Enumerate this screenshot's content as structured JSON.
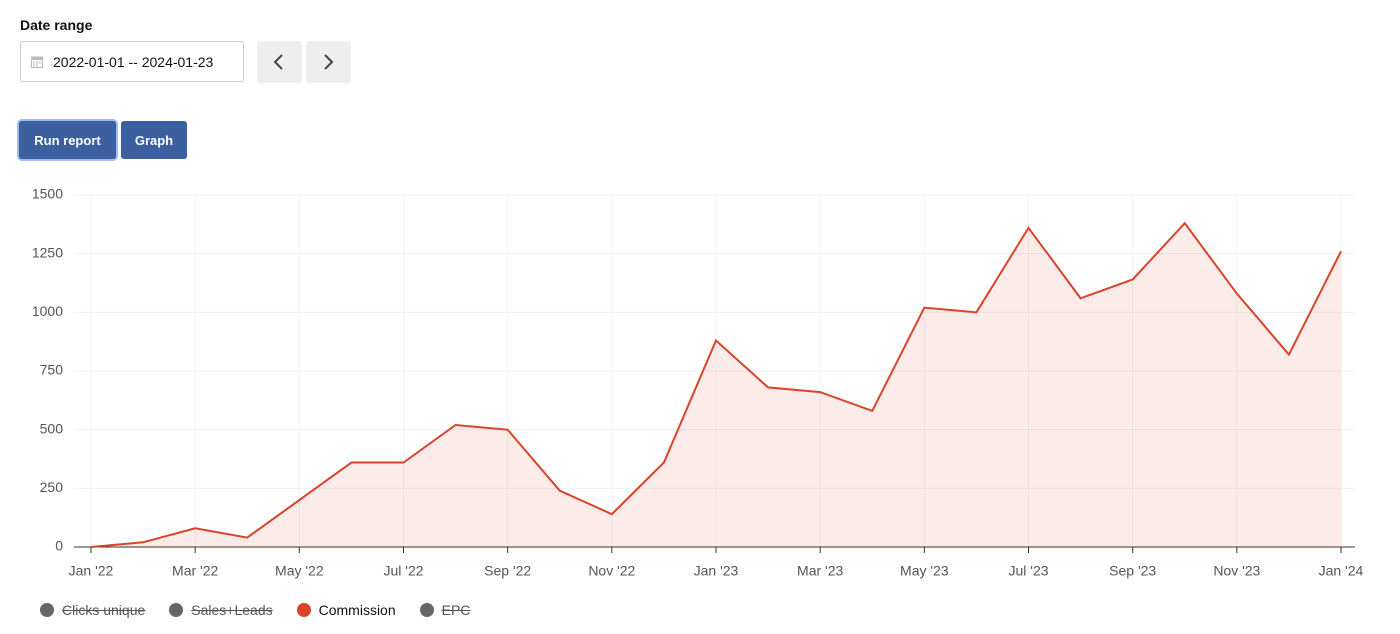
{
  "form": {
    "date_range_label": "Date range",
    "date_range_value": "2022-01-01 -- 2024-01-23",
    "run_report": "Run report",
    "graph": "Graph"
  },
  "chart_data": {
    "type": "line",
    "categories": [
      "Jan '22",
      null,
      "Mar '22",
      null,
      "May '22",
      null,
      "Jul '22",
      null,
      "Sep '22",
      null,
      "Nov '22",
      null,
      "Jan '23",
      null,
      "Mar '23",
      null,
      "May '23",
      null,
      "Jul '23",
      null,
      "Sep '23",
      null,
      "Nov '23",
      null,
      "Jan '24"
    ],
    "series": [
      {
        "name": "Clicks unique",
        "color": "#666666",
        "hidden": true
      },
      {
        "name": "Sales+Leads",
        "color": "#666666",
        "hidden": true
      },
      {
        "name": "Commission",
        "color": "#d9432a",
        "hidden": false,
        "values": [
          0,
          20,
          80,
          40,
          200,
          360,
          360,
          520,
          500,
          240,
          140,
          360,
          880,
          680,
          660,
          580,
          1020,
          1000,
          1360,
          1060,
          1140,
          1380,
          1080,
          820,
          1260
        ]
      },
      {
        "name": "EPC",
        "color": "#666666",
        "hidden": true
      }
    ],
    "ylim": [
      0,
      1500
    ],
    "yticks": [
      0,
      250,
      500,
      750,
      1000,
      1250,
      1500
    ],
    "grid": true,
    "area": true
  }
}
